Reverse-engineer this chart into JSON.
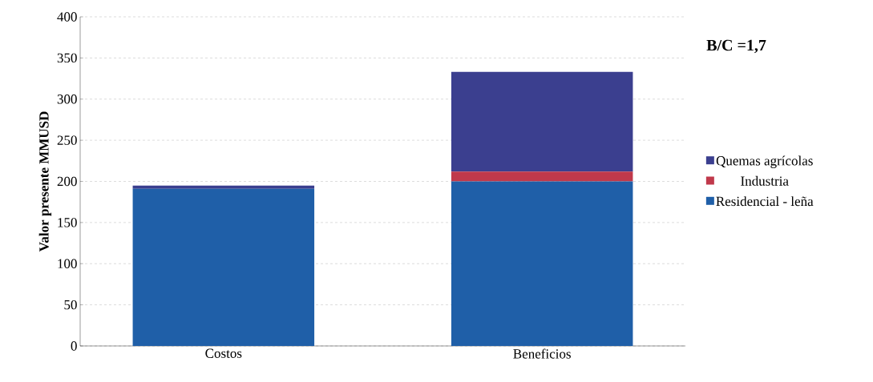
{
  "chart_data": {
    "type": "bar",
    "stacked": true,
    "ylabel": "Valor presente MMUSD",
    "categories": [
      "Costos",
      "Beneficios"
    ],
    "series": [
      {
        "name": "Residencial - leña",
        "color": "#1f5fa8",
        "values": [
          191,
          200
        ]
      },
      {
        "name": "Industria",
        "color": "#c0394b",
        "values": [
          0,
          12
        ]
      },
      {
        "name": "Quemas agrícolas",
        "color": "#3b3f8f",
        "values": [
          4,
          121
        ]
      }
    ],
    "ylim": [
      0,
      400
    ],
    "yticks": [
      0,
      50,
      100,
      150,
      200,
      250,
      300,
      350,
      400
    ],
    "grid": "y",
    "legend": "right",
    "annotations": [
      "B/C =1,7"
    ]
  }
}
